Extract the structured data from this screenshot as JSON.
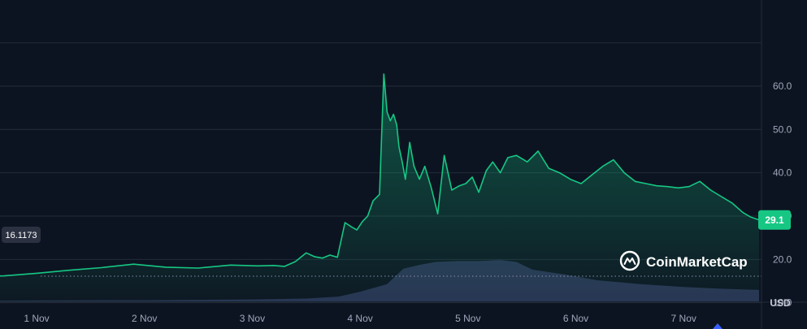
{
  "brand": {
    "name": "CoinMarketCap",
    "icon": "coinmarketcap-logo-icon"
  },
  "colors": {
    "background": "#0d1421",
    "line": "#16c784",
    "grid": "#222b3a",
    "volume": "#2c3558",
    "badge_text": "#ffffff",
    "open_badge": "#2b3140"
  },
  "chart_data": {
    "type": "area",
    "currency": "USD",
    "ylim": [
      0,
      70
    ],
    "y_ticks": [
      "10.0",
      "20.0",
      "30.0",
      "40.0",
      "50.0",
      "60.0"
    ],
    "x_ticks": [
      "1 Nov",
      "2 Nov",
      "3 Nov",
      "4 Nov",
      "5 Nov",
      "6 Nov",
      "7 Nov"
    ],
    "open_price": "16.1173",
    "current_price": "29.1",
    "grid": true,
    "price_series": {
      "x": [
        0.45,
        0.7,
        1.0,
        1.3,
        1.6,
        1.9,
        2.2,
        2.5,
        2.8,
        3.05,
        3.2,
        3.3,
        3.4,
        3.5,
        3.58,
        3.65,
        3.72,
        3.79,
        3.86,
        3.92,
        3.97,
        4.02,
        4.07,
        4.12,
        4.18,
        4.22,
        4.25,
        4.28,
        4.31,
        4.34,
        4.36,
        4.39,
        4.42,
        4.46,
        4.5,
        4.55,
        4.6,
        4.66,
        4.72,
        4.78,
        4.85,
        4.92,
        4.98,
        5.04,
        5.1,
        5.17,
        5.23,
        5.3,
        5.37,
        5.45,
        5.55,
        5.65,
        5.75,
        5.85,
        5.95,
        6.05,
        6.15,
        6.25,
        6.35,
        6.45,
        6.55,
        6.65,
        6.75,
        6.85,
        6.95,
        7.05,
        7.15,
        7.25,
        7.35,
        7.45,
        7.55,
        7.62,
        7.7
      ],
      "y": [
        16.1,
        16.2,
        16.8,
        17.5,
        18.1,
        18.9,
        18.2,
        18.0,
        18.7,
        18.5,
        18.6,
        18.4,
        19.5,
        21.5,
        20.6,
        20.3,
        21.0,
        20.5,
        28.5,
        27.5,
        26.8,
        28.7,
        30.0,
        33.5,
        35.0,
        62.8,
        54.0,
        52.0,
        53.5,
        51.0,
        46.0,
        42.5,
        38.5,
        47.0,
        41.5,
        38.5,
        41.5,
        36.5,
        30.5,
        44.0,
        36.0,
        37.0,
        37.5,
        39.0,
        35.5,
        40.5,
        42.5,
        40.0,
        43.5,
        44.0,
        42.5,
        45.0,
        41.0,
        40.0,
        38.5,
        37.5,
        39.5,
        41.5,
        43.0,
        40.0,
        38.0,
        37.5,
        37.0,
        36.8,
        36.5,
        36.8,
        38.0,
        36.0,
        34.5,
        33.0,
        30.8,
        29.8,
        29.1
      ]
    },
    "volume_series": {
      "x": [
        0.45,
        1.0,
        2.0,
        3.0,
        3.5,
        3.8,
        4.0,
        4.25,
        4.4,
        4.55,
        4.7,
        4.9,
        5.1,
        5.3,
        5.45,
        5.6,
        5.9,
        6.2,
        6.6,
        7.0,
        7.4,
        7.7
      ],
      "v": [
        0.3,
        0.5,
        0.6,
        1.0,
        1.5,
        2.5,
        5.0,
        9.0,
        17.0,
        19.0,
        20.5,
        21.0,
        21.0,
        21.5,
        20.5,
        16.5,
        14.0,
        11.0,
        9.0,
        7.5,
        6.5,
        6.0
      ]
    }
  }
}
